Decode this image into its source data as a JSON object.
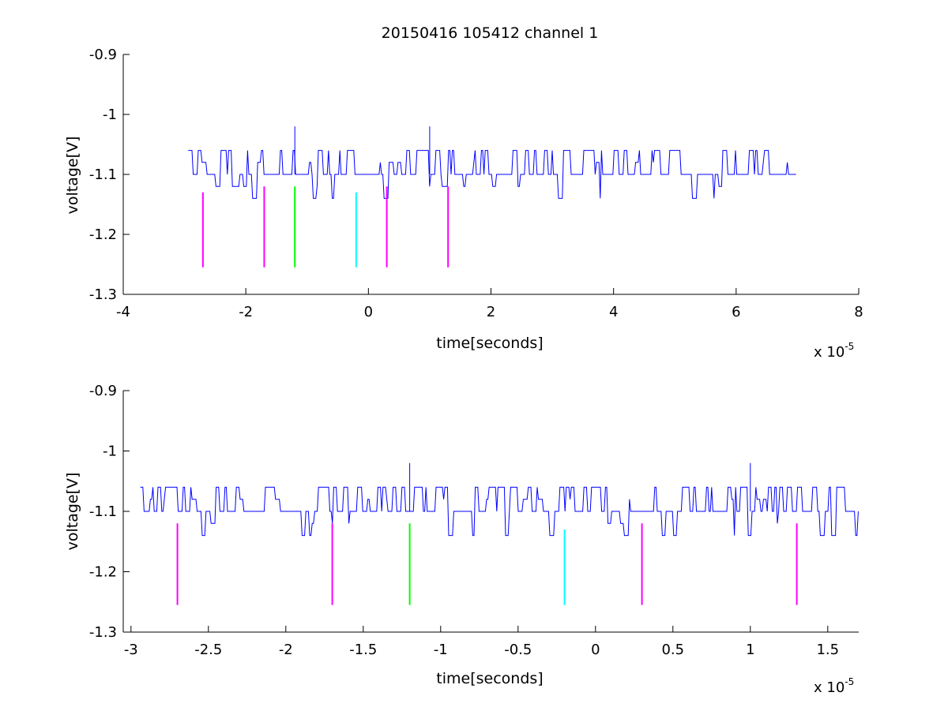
{
  "figure": {
    "title": "20150416 105412 channel 1"
  },
  "colors": {
    "trace": "#0000ff",
    "axis": "#000000",
    "magenta": "#ff00ff",
    "green": "#00ff00",
    "cyan": "#00ffff"
  },
  "chart_data": [
    {
      "type": "line",
      "xlabel": "time[seconds]",
      "ylabel": "voltage[V]",
      "x_multiplier_label": "x 10",
      "x_multiplier_exponent": "-5",
      "xlim": [
        -4,
        8
      ],
      "ylim": [
        -1.3,
        -0.9
      ],
      "xticks": [
        -4,
        -2,
        0,
        2,
        4,
        6,
        8
      ],
      "xtick_labels": [
        "-4",
        "-2",
        "0",
        "2",
        "4",
        "6",
        "8"
      ],
      "yticks": [
        -1.3,
        -1.2,
        -1.1,
        -1.0,
        -0.9
      ],
      "ytick_labels": [
        "-1.3",
        "-1.2",
        "-1.1",
        "-1",
        "-0.9"
      ],
      "grid": false,
      "series": [
        {
          "x_range": [
            -2.94,
            7.0
          ],
          "baseline": -1.1,
          "levels": [
            -1.14,
            -1.12,
            -1.1,
            -1.08,
            -1.06
          ],
          "spikes": [
            {
              "x": -1.2,
              "y": -1.02
            },
            {
              "x": 1.0,
              "y": -1.02
            }
          ]
        }
      ],
      "markers": [
        {
          "x": -2.7,
          "y_from": -1.255,
          "y_to": -1.13,
          "color": "magenta"
        },
        {
          "x": -1.7,
          "y_from": -1.255,
          "y_to": -1.12,
          "color": "magenta"
        },
        {
          "x": -1.2,
          "y_from": -1.255,
          "y_to": -1.12,
          "color": "green"
        },
        {
          "x": -0.2,
          "y_from": -1.255,
          "y_to": -1.13,
          "color": "cyan"
        },
        {
          "x": 0.3,
          "y_from": -1.255,
          "y_to": -1.12,
          "color": "magenta"
        },
        {
          "x": 1.3,
          "y_from": -1.255,
          "y_to": -1.12,
          "color": "magenta"
        }
      ]
    },
    {
      "type": "line",
      "xlabel": "time[seconds]",
      "ylabel": "voltage[V]",
      "x_multiplier_label": "x 10",
      "x_multiplier_exponent": "-5",
      "xlim": [
        -3.05,
        1.7
      ],
      "ylim": [
        -1.3,
        -0.9
      ],
      "xticks": [
        -3,
        -2.5,
        -2,
        -1.5,
        -1,
        -0.5,
        0,
        0.5,
        1,
        1.5
      ],
      "xtick_labels": [
        "-3",
        "-2.5",
        "-2",
        "-1.5",
        "-1",
        "-0.5",
        "0",
        "0.5",
        "1",
        "1.5"
      ],
      "yticks": [
        -1.3,
        -1.2,
        -1.1,
        -1.0,
        -0.9
      ],
      "ytick_labels": [
        "-1.3",
        "-1.2",
        "-1.1",
        "-1",
        "-0.9"
      ],
      "grid": false,
      "series": [
        {
          "x_range": [
            -2.94,
            1.7
          ],
          "baseline": -1.1,
          "levels": [
            -1.14,
            -1.12,
            -1.1,
            -1.08,
            -1.06
          ],
          "spikes": [
            {
              "x": -1.2,
              "y": -1.02
            },
            {
              "x": 1.0,
              "y": -1.02
            }
          ]
        }
      ],
      "markers": [
        {
          "x": -2.7,
          "y_from": -1.255,
          "y_to": -1.12,
          "color": "magenta"
        },
        {
          "x": -1.7,
          "y_from": -1.255,
          "y_to": -1.12,
          "color": "magenta"
        },
        {
          "x": -1.2,
          "y_from": -1.255,
          "y_to": -1.12,
          "color": "green"
        },
        {
          "x": -0.2,
          "y_from": -1.255,
          "y_to": -1.13,
          "color": "cyan"
        },
        {
          "x": 0.3,
          "y_from": -1.255,
          "y_to": -1.12,
          "color": "magenta"
        },
        {
          "x": 1.3,
          "y_from": -1.255,
          "y_to": -1.12,
          "color": "magenta"
        }
      ]
    }
  ]
}
